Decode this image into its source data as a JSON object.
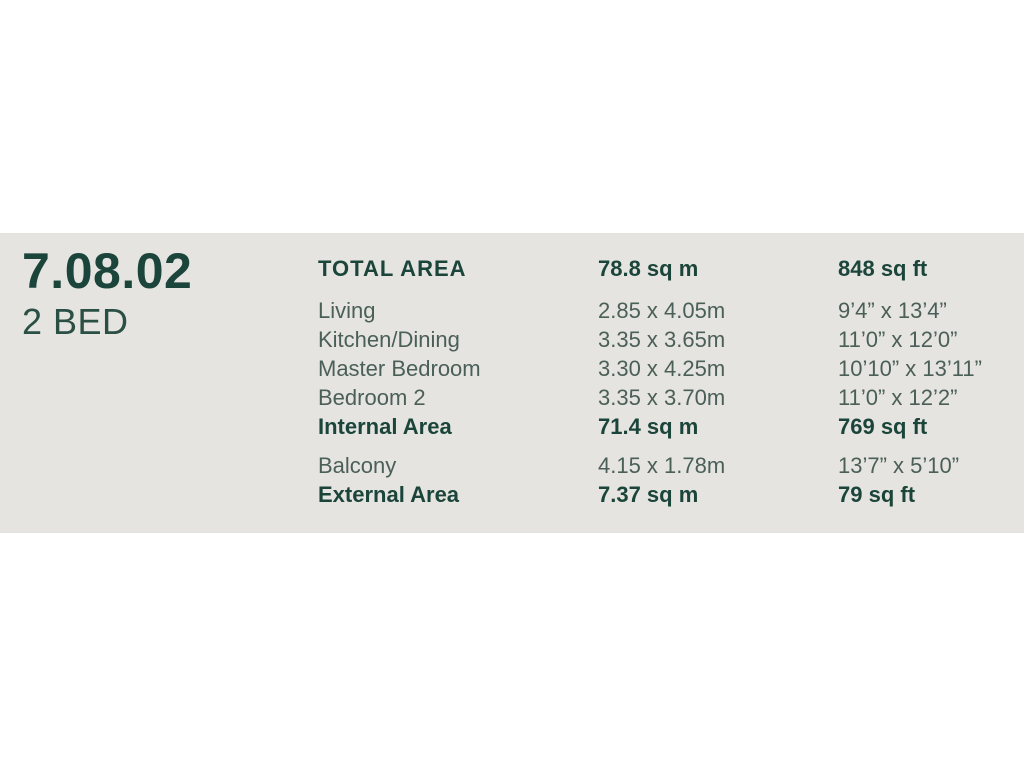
{
  "unit": {
    "number": "7.08.02",
    "type": "2 BED"
  },
  "table": {
    "rows": [
      {
        "label": "TOTAL AREA",
        "metric": "78.8 sq m",
        "imperial": "848 sq ft",
        "bold": true,
        "caps": true,
        "gap": "none"
      },
      {
        "label": "Living",
        "metric": "2.85 x 4.05m",
        "imperial": "9’4” x 13’4”",
        "bold": false,
        "caps": false,
        "gap": "large"
      },
      {
        "label": "Kitchen/Dining",
        "metric": "3.35 x 3.65m",
        "imperial": "11’0” x 12’0”",
        "bold": false,
        "caps": false,
        "gap": "none"
      },
      {
        "label": "Master Bedroom",
        "metric": "3.30 x 4.25m",
        "imperial": "10’10” x 13’11”",
        "bold": false,
        "caps": false,
        "gap": "none"
      },
      {
        "label": "Bedroom 2",
        "metric": "3.35 x 3.70m",
        "imperial": "11’0” x 12’2”",
        "bold": false,
        "caps": false,
        "gap": "none"
      },
      {
        "label": "Internal Area",
        "metric": "71.4 sq m",
        "imperial": "769 sq ft",
        "bold": true,
        "caps": false,
        "gap": "none"
      },
      {
        "label": "Balcony",
        "metric": "4.15 x 1.78m",
        "imperial": "13’7” x 5’10”",
        "bold": false,
        "caps": false,
        "gap": "small"
      },
      {
        "label": "External Area",
        "metric": "7.37 sq m",
        "imperial": "79 sq ft",
        "bold": true,
        "caps": false,
        "gap": "none"
      }
    ]
  },
  "colors": {
    "band_background": "#e6e4e1",
    "page_background": "#ffffff",
    "text_bold_green": "#1b453a",
    "text_regular_green_gray": "#4a5f58"
  }
}
